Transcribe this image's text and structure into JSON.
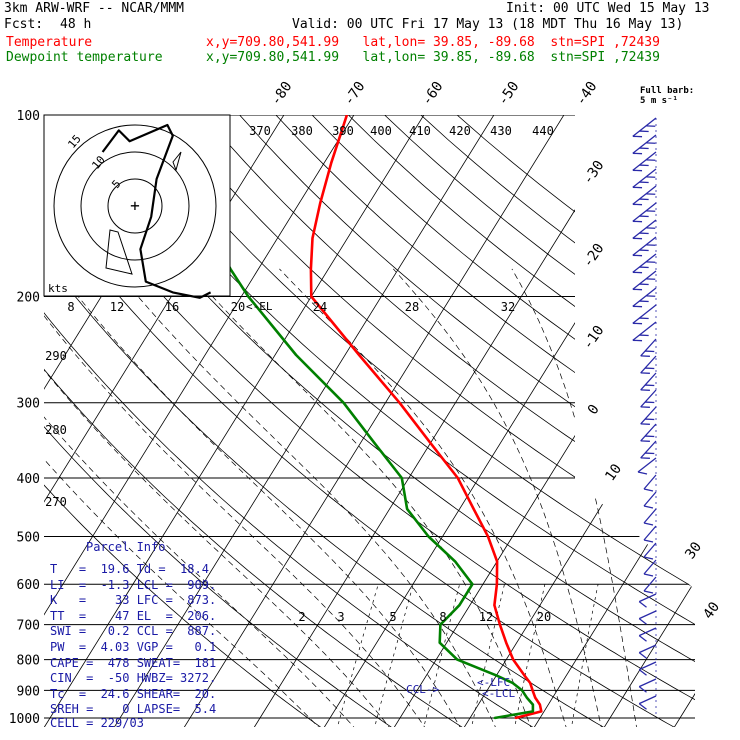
{
  "header": {
    "model": "3km ARW-WRF -- NCAR/MMM",
    "init": "Init: 00 UTC Wed 15 May 13",
    "fcst_label": "Fcst:",
    "fcst_value": "48 h",
    "valid": "Valid: 00 UTC Fri 17 May 13 (18 MDT Thu 16 May 13)"
  },
  "legend": [
    {
      "name": "Temperature",
      "info": "x,y=709.80,541.99   lat,lon= 39.85, -89.68  stn=SPI ,72439",
      "color": "#ff0000"
    },
    {
      "name": "Dewpoint temperature",
      "info": "x,y=709.80,541.99   lat,lon= 39.85, -89.68  stn=SPI ,72439",
      "color": "#008000"
    }
  ],
  "wind_barb_title": [
    "Full barb:",
    "5 m s⁻¹"
  ],
  "hodograph": {
    "units_label": "kts",
    "ring_labels": [
      "5",
      "10",
      "15"
    ],
    "trace_uv": [
      [
        -6,
        10
      ],
      [
        -3,
        14
      ],
      [
        -1,
        12
      ],
      [
        6,
        15
      ],
      [
        7,
        13
      ],
      [
        4,
        5
      ],
      [
        3,
        -2
      ],
      [
        1,
        -8
      ],
      [
        2,
        -14
      ],
      [
        7,
        -16
      ],
      [
        12,
        -17
      ],
      [
        14,
        -16
      ]
    ]
  },
  "pressure_levels": [
    "100",
    "200",
    "300",
    "400",
    "500",
    "600",
    "700",
    "800",
    "900",
    "1000"
  ],
  "isotherm_labels": [
    "-80",
    "-70",
    "-60",
    "-50",
    "-40",
    "-30",
    "-20",
    "-10",
    "0",
    "10",
    "30",
    "40"
  ],
  "theta_labels_top": [
    "370",
    "380",
    "390",
    "400",
    "410",
    "420",
    "430",
    "440"
  ],
  "theta_labels_left": [
    "290",
    "280",
    "270"
  ],
  "mixing_ratio_top": [
    "8",
    "12",
    "16",
    "20",
    "24",
    "28",
    "32"
  ],
  "mixing_ratio_bottom": [
    "2",
    "3",
    "5",
    "8",
    "12",
    "20"
  ],
  "annotations": {
    "el": "<-EL",
    "lfc": "<-LFC",
    "lcl": "<-LCL",
    "ccl": "CCL->"
  },
  "parcel": {
    "title": "Parcel Info",
    "rows": [
      "T   =  19.6 Td =  18.4",
      "LI  =  -1.3 LCL =  909.",
      "K   =    33 LFC =  873.",
      "TT  =    47 EL  =  206.",
      "SWI =   0.2 CCL =  887.",
      "PW  =  4.03 VGP =   0.1",
      "CAPE =  478 SWEAT=  181",
      "CIN  =  -50 HWBZ= 3272.",
      "Tc  =  24.6 SHEAR=  20.",
      "SREH =    0 LAPSE=  5.4",
      "CELL = 229/03"
    ]
  },
  "chart_data": {
    "type": "line",
    "title": "",
    "xlabel": "",
    "ylabel": "",
    "ylim": [
      1000,
      100
    ],
    "y_axis": "pressure (hPa), log scale",
    "series": [
      {
        "name": "Temperature",
        "color": "#ff0000",
        "points": [
          [
            1000,
            16.5
          ],
          [
            975,
            19.6
          ],
          [
            950,
            18.8
          ],
          [
            925,
            17.5
          ],
          [
            900,
            16.5
          ],
          [
            875,
            15.5
          ],
          [
            850,
            14.0
          ],
          [
            800,
            11.0
          ],
          [
            750,
            8.5
          ],
          [
            700,
            6.0
          ],
          [
            650,
            3.5
          ],
          [
            600,
            2.0
          ],
          [
            550,
            0.0
          ],
          [
            500,
            -3.5
          ],
          [
            450,
            -8.0
          ],
          [
            400,
            -13.0
          ],
          [
            350,
            -20.0
          ],
          [
            300,
            -28.0
          ],
          [
            250,
            -38.0
          ],
          [
            200,
            -50.0
          ],
          [
            180,
            -52.5
          ],
          [
            160,
            -55.0
          ],
          [
            140,
            -57.0
          ],
          [
            120,
            -59.0
          ],
          [
            100,
            -61.0
          ]
        ]
      },
      {
        "name": "Dewpoint temperature",
        "color": "#008000",
        "points": [
          [
            1000,
            13.5
          ],
          [
            975,
            18.4
          ],
          [
            950,
            17.8
          ],
          [
            925,
            16.3
          ],
          [
            900,
            15.0
          ],
          [
            875,
            13.0
          ],
          [
            850,
            10.0
          ],
          [
            800,
            3.0
          ],
          [
            750,
            -1.0
          ],
          [
            700,
            -2.5
          ],
          [
            650,
            -1.5
          ],
          [
            600,
            -1.5
          ],
          [
            550,
            -6.0
          ],
          [
            500,
            -12.0
          ],
          [
            450,
            -17.5
          ],
          [
            400,
            -21.0
          ],
          [
            350,
            -28.0
          ],
          [
            300,
            -36.0
          ],
          [
            250,
            -47.0
          ],
          [
            200,
            -59.0
          ],
          [
            180,
            -64.0
          ],
          [
            160,
            -69.0
          ],
          [
            140,
            -73.0
          ],
          [
            120,
            -78.0
          ],
          [
            100,
            -84.0
          ]
        ]
      }
    ],
    "grid": true
  }
}
